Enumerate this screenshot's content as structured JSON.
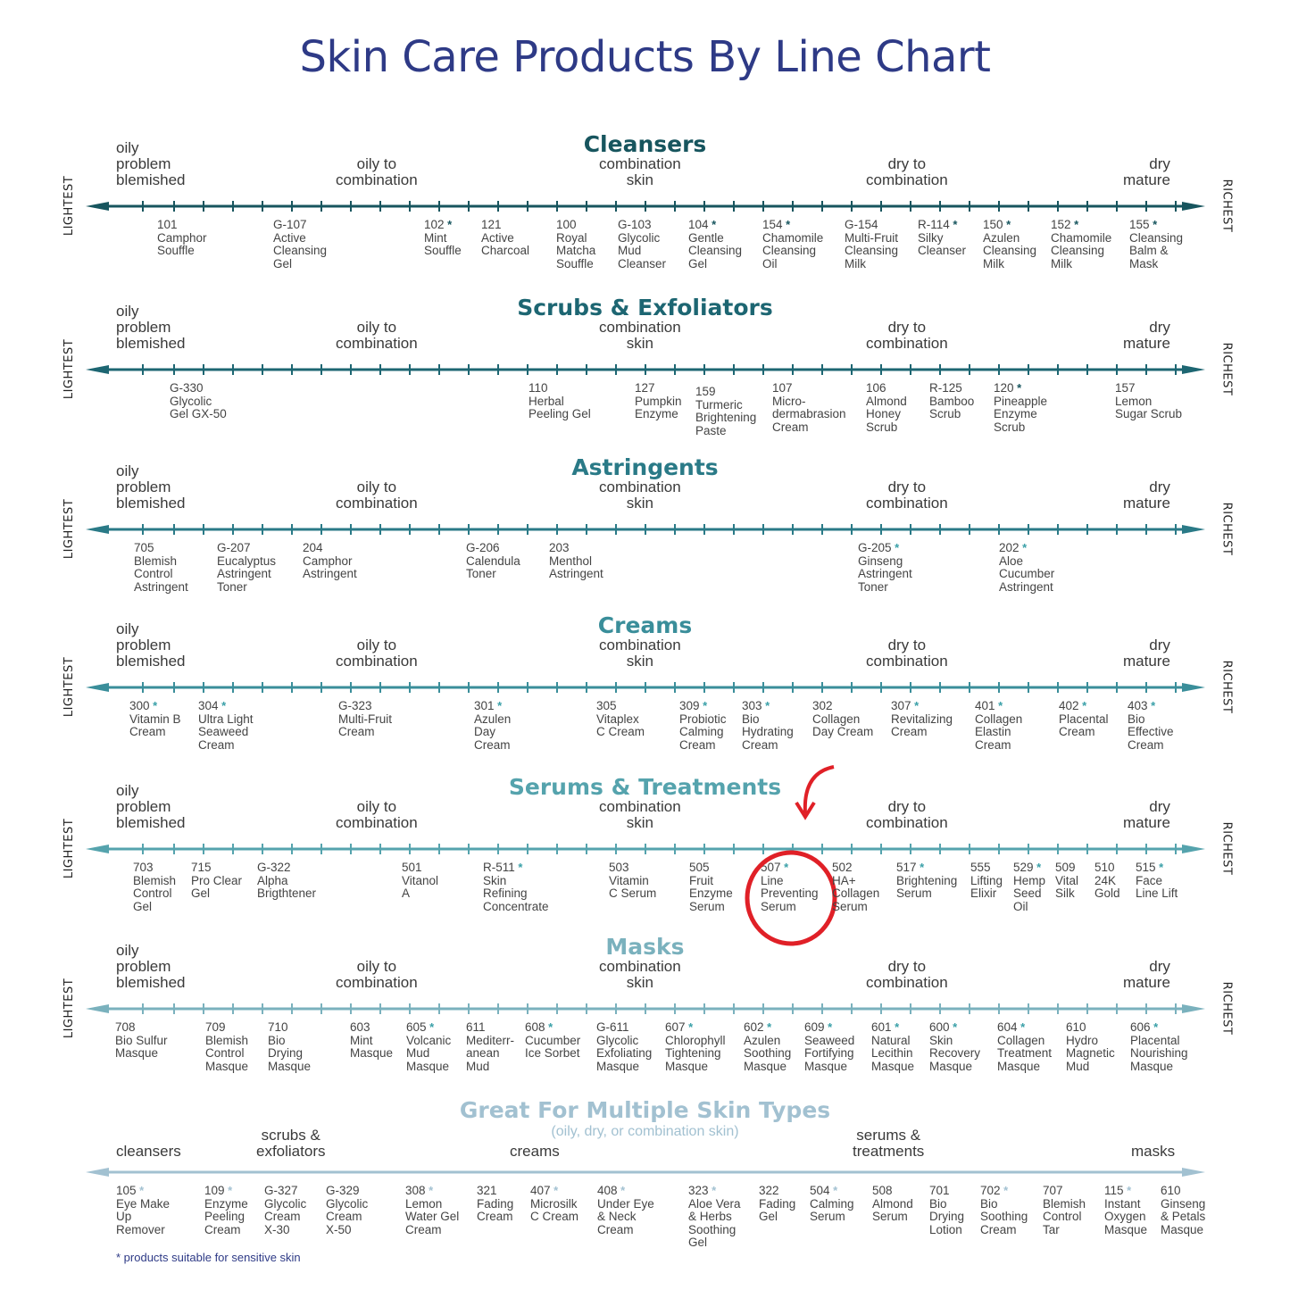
{
  "title": "Skin Care Products By Line Chart",
  "footnote": "* products suitable for sensitive skin",
  "side_left": "LIGHTEST",
  "side_right": "RICHEST",
  "colors": {
    "title": "#2e3a86",
    "star": "#3aa0a8"
  },
  "skin_labels": {
    "oily": [
      "oily",
      "problem",
      "blemished"
    ],
    "oily_combo": [
      "oily to",
      "combination"
    ],
    "combo": [
      "combination",
      "skin"
    ],
    "dry_combo": [
      "dry to",
      "combination"
    ],
    "dry": [
      "dry",
      "mature"
    ]
  },
  "chart_data": {
    "type": "table",
    "lines": [
      {
        "name": "Cleansers",
        "color": "#17555e",
        "products": [
          {
            "code": "101",
            "star": false,
            "name": [
              "Camphor",
              "Souffle"
            ]
          },
          {
            "code": "G-107",
            "star": false,
            "name": [
              "Active",
              "Cleansing",
              "Gel"
            ]
          },
          {
            "code": "102",
            "star": true,
            "name": [
              "Mint",
              "Souffle"
            ]
          },
          {
            "code": "121",
            "star": false,
            "name": [
              "Active",
              "Charcoal"
            ]
          },
          {
            "code": "100",
            "star": false,
            "name": [
              "Royal",
              "Matcha",
              "Souffle"
            ]
          },
          {
            "code": "G-103",
            "star": false,
            "name": [
              "Glycolic",
              "Mud",
              "Cleanser"
            ]
          },
          {
            "code": "104",
            "star": true,
            "name": [
              "Gentle",
              "Cleansing",
              "Gel"
            ]
          },
          {
            "code": "154",
            "star": true,
            "name": [
              "Chamomile",
              "Cleansing",
              "Oil"
            ]
          },
          {
            "code": "G-154",
            "star": false,
            "name": [
              "Multi-Fruit",
              "Cleansing",
              "Milk"
            ]
          },
          {
            "code": "R-114",
            "star": true,
            "name": [
              "Silky",
              "Cleanser"
            ]
          },
          {
            "code": "150",
            "star": true,
            "name": [
              "Azulen",
              "Cleansing",
              "Milk"
            ]
          },
          {
            "code": "152",
            "star": true,
            "name": [
              "Chamomile",
              "Cleansing",
              "Milk"
            ]
          },
          {
            "code": "155",
            "star": true,
            "name": [
              "Cleansing",
              "Balm &",
              "Mask"
            ]
          }
        ]
      },
      {
        "name": "Scrubs & Exfoliators",
        "color": "#1d6672",
        "products": [
          {
            "code": "G-330",
            "star": false,
            "name": [
              "Glycolic",
              "Gel GX-50"
            ]
          },
          {
            "code": "110",
            "star": false,
            "name": [
              "Herbal",
              "Peeling Gel"
            ]
          },
          {
            "code": "127",
            "star": false,
            "name": [
              "Pumpkin",
              "Enzyme"
            ]
          },
          {
            "code": "159",
            "star": false,
            "name": [
              "Turmeric",
              "Brightening",
              "Paste"
            ]
          },
          {
            "code": "107",
            "star": false,
            "name": [
              "Micro-",
              "dermabrasion",
              "Cream"
            ]
          },
          {
            "code": "106",
            "star": false,
            "name": [
              "Almond",
              "Honey",
              "Scrub"
            ]
          },
          {
            "code": "R-125",
            "star": false,
            "name": [
              "Bamboo",
              "Scrub"
            ]
          },
          {
            "code": "120",
            "star": true,
            "name": [
              "Pineapple",
              "Enzyme",
              "Scrub"
            ]
          },
          {
            "code": "157",
            "star": false,
            "name": [
              "Lemon",
              "Sugar Scrub"
            ]
          }
        ]
      },
      {
        "name": "Astringents",
        "color": "#2a7a87",
        "products": [
          {
            "code": "705",
            "star": false,
            "name": [
              "Blemish",
              "Control",
              "Astringent"
            ]
          },
          {
            "code": "G-207",
            "star": false,
            "name": [
              "Eucalyptus",
              "Astringent",
              "Toner"
            ]
          },
          {
            "code": "204",
            "star": false,
            "name": [
              "Camphor",
              "Astringent"
            ]
          },
          {
            "code": "G-206",
            "star": false,
            "name": [
              "Calendula",
              "Toner"
            ]
          },
          {
            "code": "203",
            "star": false,
            "name": [
              "Menthol",
              "Astringent"
            ]
          },
          {
            "code": "G-205",
            "star": true,
            "name": [
              "Ginseng",
              "Astringent",
              "Toner"
            ]
          },
          {
            "code": "202",
            "star": true,
            "name": [
              "Aloe",
              "Cucumber",
              "Astringent"
            ]
          }
        ]
      },
      {
        "name": "Creams",
        "color": "#3a8e9a",
        "products": [
          {
            "code": "300",
            "star": true,
            "name": [
              "Vitamin B",
              "Cream"
            ]
          },
          {
            "code": "304",
            "star": true,
            "name": [
              "Ultra Light",
              "Seaweed",
              "Cream"
            ]
          },
          {
            "code": "G-323",
            "star": false,
            "name": [
              "Multi-Fruit",
              "Cream"
            ]
          },
          {
            "code": "301",
            "star": true,
            "name": [
              "Azulen",
              "Day",
              "Cream"
            ]
          },
          {
            "code": "305",
            "star": false,
            "name": [
              "Vitaplex",
              "C Cream"
            ]
          },
          {
            "code": "309",
            "star": true,
            "name": [
              "Probiotic",
              "Calming",
              "Cream"
            ]
          },
          {
            "code": "303",
            "star": true,
            "name": [
              "Bio",
              "Hydrating",
              "Cream"
            ]
          },
          {
            "code": "302",
            "star": false,
            "name": [
              "Collagen",
              "Day Cream"
            ]
          },
          {
            "code": "307",
            "star": true,
            "name": [
              "Revitalizing",
              "Cream"
            ]
          },
          {
            "code": "401",
            "star": true,
            "name": [
              "Collagen",
              "Elastin",
              "Cream"
            ]
          },
          {
            "code": "402",
            "star": true,
            "name": [
              "Placental",
              "Cream"
            ]
          },
          {
            "code": "403",
            "star": true,
            "name": [
              "Bio",
              "Effective",
              "Cream"
            ]
          }
        ]
      },
      {
        "name": "Serums & Treatments",
        "color": "#55a3ad",
        "highlight": "507",
        "products": [
          {
            "code": "703",
            "star": false,
            "name": [
              "Blemish",
              "Control",
              "Gel"
            ]
          },
          {
            "code": "715",
            "star": false,
            "name": [
              "Pro Clear",
              "Gel"
            ]
          },
          {
            "code": "G-322",
            "star": false,
            "name": [
              "Alpha",
              "Brigthtener"
            ]
          },
          {
            "code": "501",
            "star": false,
            "name": [
              "Vitanol",
              "A"
            ]
          },
          {
            "code": "R-511",
            "star": true,
            "name": [
              "Skin",
              "Refining",
              "Concentrate"
            ]
          },
          {
            "code": "503",
            "star": false,
            "name": [
              "Vitamin",
              "C Serum"
            ]
          },
          {
            "code": "505",
            "star": false,
            "name": [
              "Fruit",
              "Enzyme",
              "Serum"
            ]
          },
          {
            "code": "507",
            "star": true,
            "name": [
              "Line",
              "Preventing",
              "Serum"
            ]
          },
          {
            "code": "502",
            "star": false,
            "name": [
              "HA+",
              "Collagen",
              "Serum"
            ]
          },
          {
            "code": "517",
            "star": true,
            "name": [
              "Brightening",
              "Serum"
            ]
          },
          {
            "code": "555",
            "star": false,
            "name": [
              "Lifting",
              "Elixir"
            ]
          },
          {
            "code": "529",
            "star": true,
            "name": [
              "Hemp",
              "Seed",
              "Oil"
            ]
          },
          {
            "code": "509",
            "star": false,
            "name": [
              "Vital",
              "Silk"
            ]
          },
          {
            "code": "510",
            "star": false,
            "name": [
              "24K",
              "Gold"
            ]
          },
          {
            "code": "515",
            "star": true,
            "name": [
              "Face",
              "Line Lift"
            ]
          }
        ]
      },
      {
        "name": "Masks",
        "color": "#7ab1bd",
        "products": [
          {
            "code": "708",
            "star": false,
            "name": [
              "Bio Sulfur",
              "Masque"
            ]
          },
          {
            "code": "709",
            "star": false,
            "name": [
              "Blemish",
              "Control",
              "Masque"
            ]
          },
          {
            "code": "710",
            "star": false,
            "name": [
              "Bio",
              "Drying",
              "Masque"
            ]
          },
          {
            "code": "603",
            "star": false,
            "name": [
              "Mint",
              "Masque"
            ]
          },
          {
            "code": "605",
            "star": true,
            "name": [
              "Volcanic",
              "Mud",
              "Masque"
            ]
          },
          {
            "code": "611",
            "star": false,
            "name": [
              "Mediterr-",
              "anean",
              "Mud"
            ]
          },
          {
            "code": "608",
            "star": true,
            "name": [
              "Cucumber",
              "Ice Sorbet"
            ]
          },
          {
            "code": "G-611",
            "star": false,
            "name": [
              "Glycolic",
              "Exfoliating",
              "Masque"
            ]
          },
          {
            "code": "607",
            "star": true,
            "name": [
              "Chlorophyll",
              "Tightening",
              "Masque"
            ]
          },
          {
            "code": "602",
            "star": true,
            "name": [
              "Azulen",
              "Soothing",
              "Masque"
            ]
          },
          {
            "code": "609",
            "star": true,
            "name": [
              "Seaweed",
              "Fortifying",
              "Masque"
            ]
          },
          {
            "code": "601",
            "star": true,
            "name": [
              "Natural",
              "Lecithin",
              "Masque"
            ]
          },
          {
            "code": "600",
            "star": true,
            "name": [
              "Skin",
              "Recovery",
              "Masque"
            ]
          },
          {
            "code": "604",
            "star": true,
            "name": [
              "Collagen",
              "Treatment",
              "Masque"
            ]
          },
          {
            "code": "610",
            "star": false,
            "name": [
              "Hydro",
              "Magnetic",
              "Mud"
            ]
          },
          {
            "code": "606",
            "star": true,
            "name": [
              "Placental",
              "Nourishing",
              "Masque"
            ]
          }
        ]
      },
      {
        "name": "Great For Multiple Skin Types",
        "subtitle": "(oily, dry, or combination skin)",
        "color": "#a2c1d1",
        "categories": [
          "cleansers",
          "scrubs & exfoliators",
          "creams",
          "serums & treatments",
          "masks"
        ],
        "products": [
          {
            "code": "105",
            "star": true,
            "name": [
              "Eye Make",
              "Up",
              "Remover"
            ]
          },
          {
            "code": "109",
            "star": true,
            "name": [
              "Enzyme",
              "Peeling",
              "Cream"
            ]
          },
          {
            "code": "G-327",
            "star": false,
            "name": [
              "Glycolic",
              "Cream",
              "X-30"
            ]
          },
          {
            "code": "G-329",
            "star": false,
            "name": [
              "Glycolic",
              "Cream",
              "X-50"
            ]
          },
          {
            "code": "308",
            "star": true,
            "name": [
              "Lemon",
              "Water Gel",
              "Cream"
            ]
          },
          {
            "code": "321",
            "star": false,
            "name": [
              "Fading",
              "Cream"
            ]
          },
          {
            "code": "407",
            "star": true,
            "name": [
              "Microsilk",
              "C Cream"
            ]
          },
          {
            "code": "408",
            "star": true,
            "name": [
              "Under Eye",
              "& Neck",
              "Cream"
            ]
          },
          {
            "code": "323",
            "star": true,
            "name": [
              "Aloe Vera",
              "& Herbs",
              "Soothing",
              "Gel"
            ]
          },
          {
            "code": "322",
            "star": false,
            "name": [
              "Fading",
              "Gel"
            ]
          },
          {
            "code": "504",
            "star": true,
            "name": [
              "Calming",
              "Serum"
            ]
          },
          {
            "code": "508",
            "star": false,
            "name": [
              "Almond",
              "Serum"
            ]
          },
          {
            "code": "701",
            "star": false,
            "name": [
              "Bio",
              "Drying",
              "Lotion"
            ]
          },
          {
            "code": "702",
            "star": true,
            "name": [
              "Bio",
              "Soothing",
              "Cream"
            ]
          },
          {
            "code": "707",
            "star": false,
            "name": [
              "Blemish",
              "Control",
              "Tar"
            ]
          },
          {
            "code": "115",
            "star": true,
            "name": [
              "Instant",
              "Oxygen",
              "Masque"
            ]
          },
          {
            "code": "610",
            "star": false,
            "name": [
              "Ginseng",
              "& Petals",
              "Masque"
            ]
          }
        ]
      }
    ]
  }
}
